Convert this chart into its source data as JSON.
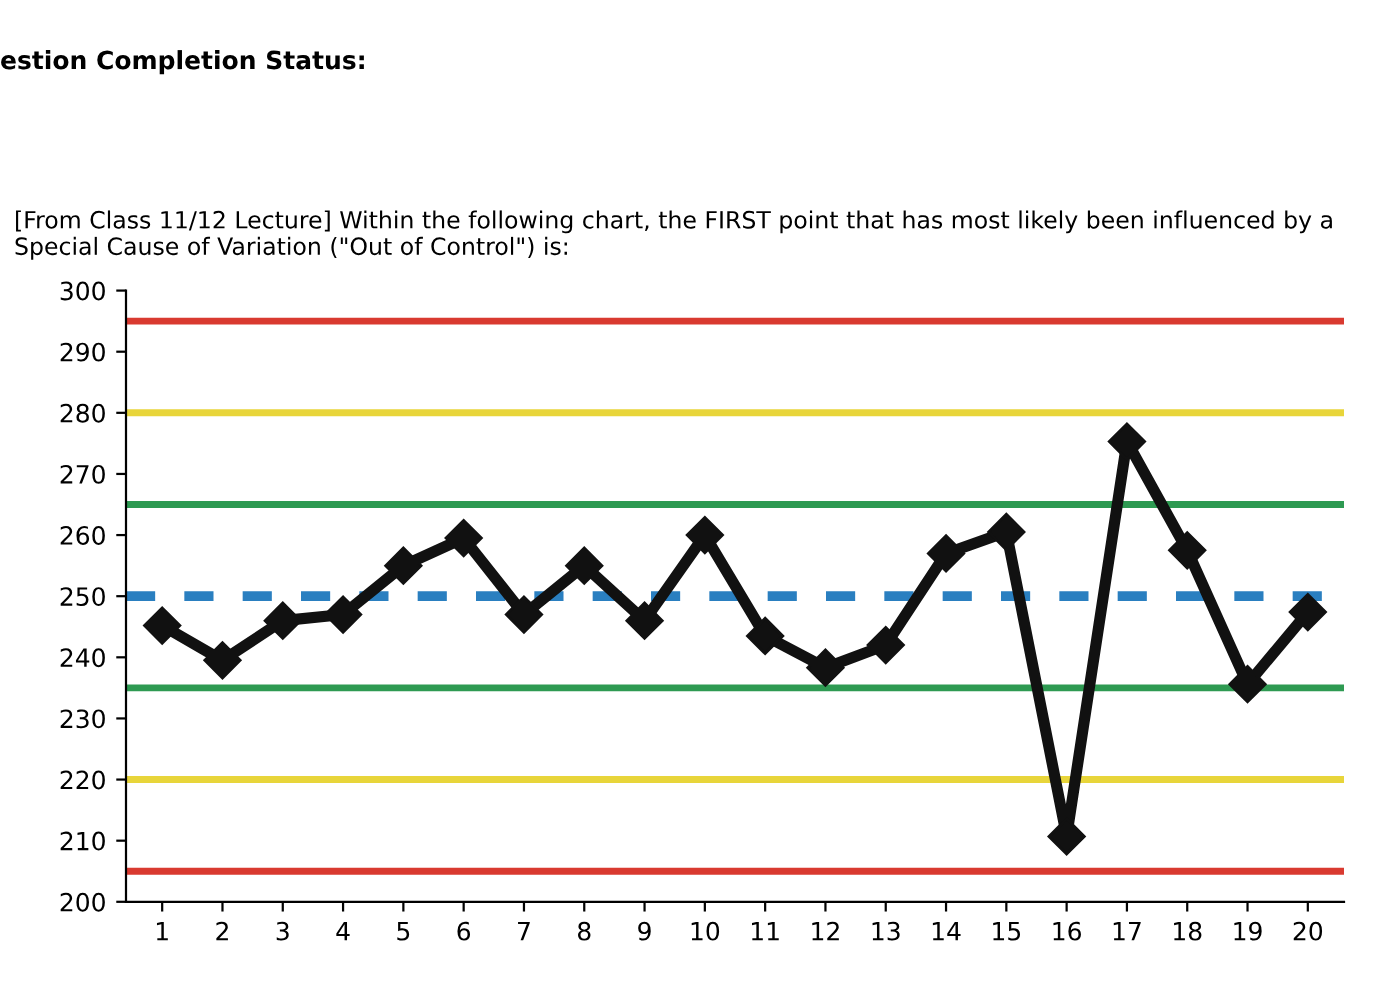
{
  "chart_data": {
    "type": "line",
    "title": "[From Class 11/12 Lecture] Within the following chart, the FIRST point that has most likely been influenced by a Special Cause of Variation (\"Out of Control\") is:",
    "annotations": [
      "estion Completion Status:"
    ],
    "categories": [
      "1",
      "2",
      "3",
      "4",
      "5",
      "6",
      "7",
      "8",
      "9",
      "10",
      "11",
      "12",
      "13",
      "14",
      "15",
      "16",
      "17",
      "18",
      "19",
      "20"
    ],
    "series": [
      {
        "color": "#111111",
        "values": [
          245.2,
          239.5,
          246,
          247,
          255,
          259.5,
          247,
          255,
          246,
          260,
          243.5,
          238.3,
          242,
          257,
          260.5,
          210.7,
          275.3,
          257.5,
          235.6,
          247.4
        ]
      }
    ],
    "ylim": [
      200,
      300
    ],
    "yticks": [
      200,
      210,
      220,
      230,
      240,
      250,
      260,
      270,
      280,
      290,
      300
    ],
    "ref_lines": [
      {
        "axis": "y",
        "value": 295,
        "color": "#d93a30",
        "line_style": "solid"
      },
      {
        "axis": "y",
        "value": 280,
        "color": "#e8d53a",
        "line_style": "solid"
      },
      {
        "axis": "y",
        "value": 265,
        "color": "#2e9a52",
        "line_style": "solid"
      },
      {
        "axis": "y",
        "value": 250,
        "color": "#2a7fc0",
        "line_style": "dashed"
      },
      {
        "axis": "y",
        "value": 235,
        "color": "#2e9a52",
        "line_style": "solid"
      },
      {
        "axis": "y",
        "value": 220,
        "color": "#e8d53a",
        "line_style": "solid"
      },
      {
        "axis": "y",
        "value": 205,
        "color": "#d93a30",
        "line_style": "solid"
      }
    ],
    "marker": "diamond",
    "line_style": "solid",
    "grid": false,
    "legend": false
  }
}
